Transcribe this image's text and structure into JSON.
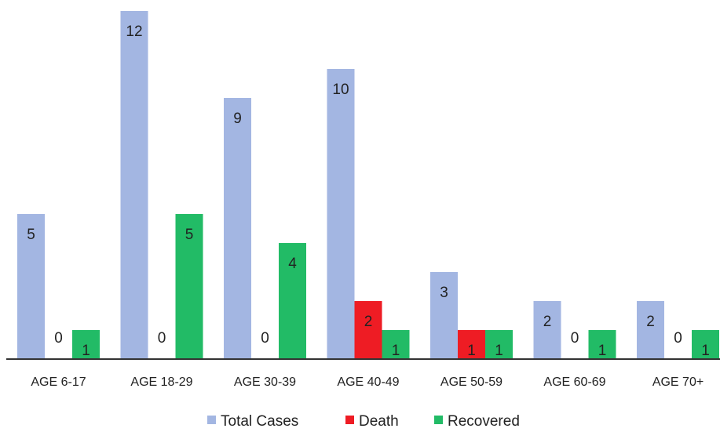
{
  "chart_data": {
    "type": "bar",
    "categories": [
      "AGE 6-17",
      "AGE 18-29",
      "AGE 30-39",
      "AGE 40-49",
      "AGE 50-59",
      "AGE 60-69",
      "AGE 70+"
    ],
    "series": [
      {
        "name": "Total Cases",
        "color": "#a3b6e2",
        "values": [
          5,
          12,
          9,
          10,
          3,
          2,
          2
        ]
      },
      {
        "name": "Death",
        "color": "#ee1c24",
        "values": [
          0,
          0,
          0,
          2,
          1,
          0,
          0
        ]
      },
      {
        "name": "Recovered",
        "color": "#22bb66",
        "values": [
          1,
          5,
          4,
          1,
          1,
          1,
          1
        ]
      }
    ],
    "ylim": [
      0,
      12
    ],
    "grid": false,
    "legend": "bottom",
    "data_labels": true
  }
}
